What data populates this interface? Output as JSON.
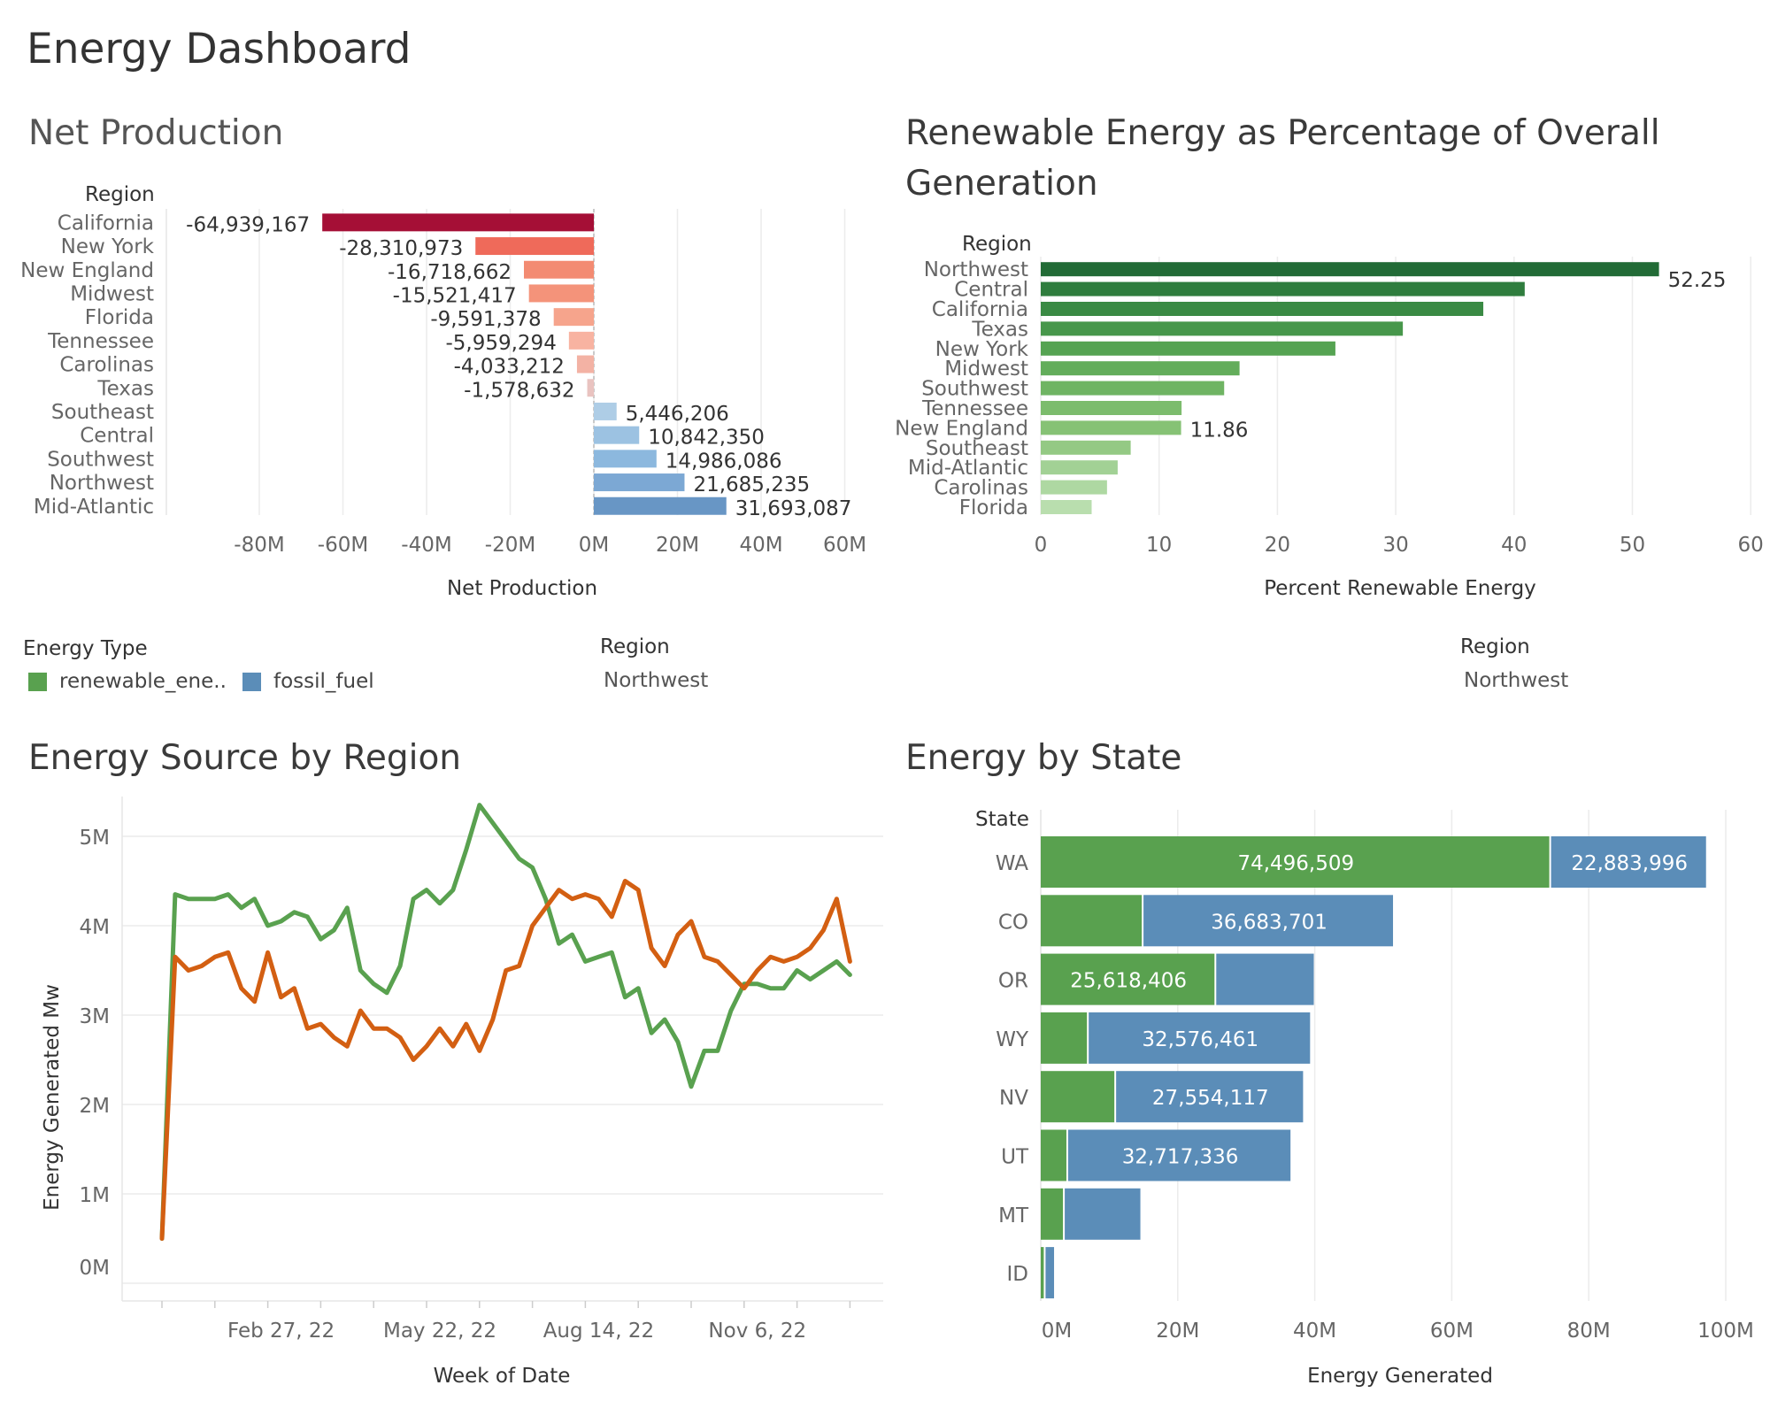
{
  "dashboard": {
    "title": "Energy Dashboard"
  },
  "panels": {
    "net_production": {
      "title": "Net Production"
    },
    "renewable_pct": {
      "title": "Renewable Energy as Percentage of Overall Generation"
    },
    "energy_source": {
      "title": "Energy Source by Region"
    },
    "energy_state": {
      "title": "Energy by State"
    }
  },
  "legend": {
    "title": "Energy Type",
    "items": [
      {
        "label": "renewable_ene..",
        "color": "#59a14f"
      },
      {
        "label": "fossil_fuel",
        "color": "#5b8db8"
      }
    ]
  },
  "filters": [
    {
      "label": "Region",
      "value": "Northwest"
    },
    {
      "label": "Region",
      "value": "Northwest"
    }
  ],
  "chart_data": [
    {
      "type": "bar",
      "orientation": "horizontal",
      "row_header": "Region",
      "categories": [
        "California",
        "New York",
        "New England",
        "Midwest",
        "Florida",
        "Tennessee",
        "Carolinas",
        "Texas",
        "Southeast",
        "Central",
        "Southwest",
        "Northwest",
        "Mid-Atlantic"
      ],
      "values": [
        -64939167,
        -28310973,
        -16718662,
        -15521417,
        -9591378,
        -5959294,
        -4033212,
        -1578632,
        5446206,
        10842350,
        14986086,
        21685235,
        31693087
      ],
      "labels": [
        "-64,939,167",
        "-28,310,973",
        "-16,718,662",
        "-15,521,417",
        "-9,591,378",
        "-5,959,294",
        "-4,033,212",
        "-1,578,632",
        "5,446,206",
        "10,842,350",
        "14,986,086",
        "21,685,235",
        "31,693,087"
      ],
      "xlabel": "Net Production",
      "xlim": [
        -100000000,
        68000000
      ],
      "ticks": [
        -80000000,
        -60000000,
        -40000000,
        -20000000,
        0,
        20000000,
        40000000,
        60000000
      ],
      "tick_labels": [
        "-80M",
        "-60M",
        "-40M",
        "-20M",
        "0M",
        "20M",
        "40M",
        "60M"
      ],
      "colors": [
        "#a50f36",
        "#ef6a5a",
        "#f38b72",
        "#f4937a",
        "#f6a48c",
        "#f8b3a1",
        "#f3b2a4",
        "#e9c3c0",
        "#aecde6",
        "#9cc2e2",
        "#8cb8de",
        "#7ca8d4",
        "#6896c5"
      ]
    },
    {
      "type": "bar",
      "orientation": "horizontal",
      "row_header": "Region",
      "categories": [
        "Northwest",
        "Central",
        "California",
        "Texas",
        "New York",
        "Midwest",
        "Southwest",
        "Tennessee",
        "New England",
        "Southeast",
        "Mid-Atlantic",
        "Carolinas",
        "Florida"
      ],
      "values": [
        52.25,
        40.9,
        37.4,
        30.6,
        24.9,
        16.8,
        15.5,
        11.9,
        11.86,
        7.6,
        6.5,
        5.6,
        4.3
      ],
      "data_labels": {
        "Northwest": "52.25",
        "New England": "11.86"
      },
      "xlabel": "Percent Renewable Energy",
      "xlim": [
        0,
        60
      ],
      "ticks": [
        0,
        10,
        20,
        30,
        40,
        50,
        60
      ],
      "tick_labels": [
        "0",
        "10",
        "20",
        "30",
        "40",
        "50",
        "60"
      ],
      "colors": [
        "#226b36",
        "#2f7d3e",
        "#3a8a44",
        "#47974b",
        "#55a352",
        "#63ad5b",
        "#6fb463",
        "#7cbc6d",
        "#86c275",
        "#94c984",
        "#a2d195",
        "#aed8a2",
        "#b9deae"
      ]
    },
    {
      "type": "line",
      "xlabel": "Week of Date",
      "ylabel": "Energy Generated Mw",
      "x_tick_labels": [
        "Feb 27, 22",
        "May 22, 22",
        "Aug 14, 22",
        "Nov 6, 22"
      ],
      "x_tick_weeks": [
        8,
        20,
        32,
        44
      ],
      "y_ticks": [
        0,
        1000000,
        2000000,
        3000000,
        4000000,
        5000000
      ],
      "y_tick_labels": [
        "0M",
        "1M",
        "2M",
        "3M",
        "4M",
        "5M"
      ],
      "ylim": [
        0,
        5600000
      ],
      "series": [
        {
          "color": "#59a14f",
          "values": [
            500000,
            4350000,
            4300000,
            4300000,
            4300000,
            4350000,
            4200000,
            4300000,
            4000000,
            4050000,
            4150000,
            4100000,
            3850000,
            3950000,
            4200000,
            3500000,
            3350000,
            3250000,
            3550000,
            4300000,
            4400000,
            4250000,
            4400000,
            4850000,
            5350000,
            5150000,
            4950000,
            4750000,
            4650000,
            4300000,
            3800000,
            3900000,
            3600000,
            3650000,
            3700000,
            3200000,
            3300000,
            2800000,
            2950000,
            2700000,
            2200000,
            2600000,
            2600000,
            3050000,
            3350000,
            3350000,
            3300000,
            3300000,
            3500000,
            3400000,
            3500000,
            3600000,
            3450000
          ]
        },
        {
          "color": "#d35f12",
          "values": [
            500000,
            3650000,
            3500000,
            3550000,
            3650000,
            3700000,
            3300000,
            3150000,
            3700000,
            3200000,
            3300000,
            2850000,
            2900000,
            2750000,
            2650000,
            3050000,
            2850000,
            2850000,
            2750000,
            2500000,
            2650000,
            2850000,
            2650000,
            2900000,
            2600000,
            2950000,
            3500000,
            3550000,
            4000000,
            4200000,
            4400000,
            4300000,
            4350000,
            4300000,
            4100000,
            4500000,
            4400000,
            3750000,
            3550000,
            3900000,
            4050000,
            3650000,
            3600000,
            3450000,
            3300000,
            3500000,
            3650000,
            3600000,
            3650000,
            3750000,
            3950000,
            4300000,
            3600000
          ]
        }
      ]
    },
    {
      "type": "bar",
      "orientation": "horizontal",
      "stacked": true,
      "row_header": "State",
      "categories": [
        "WA",
        "CO",
        "OR",
        "WY",
        "NV",
        "UT",
        "MT",
        "ID"
      ],
      "xlabel": "Energy Generated",
      "xlim": [
        0,
        100000000
      ],
      "ticks": [
        0,
        20000000,
        40000000,
        60000000,
        80000000,
        100000000
      ],
      "tick_labels": [
        "0M",
        "20M",
        "40M",
        "60M",
        "80M",
        "100M"
      ],
      "series": [
        {
          "name": "renewable_ene..",
          "color": "#59a14f",
          "values": [
            74496509,
            15000000,
            25618406,
            7000000,
            11000000,
            4000000,
            3500000,
            700000
          ],
          "labels": [
            "74,496,509",
            "",
            "25,618,406",
            "",
            "",
            "",
            "",
            ""
          ]
        },
        {
          "name": "fossil_fuel",
          "color": "#5b8db8",
          "values": [
            22883996,
            36683701,
            14500000,
            32576461,
            27554117,
            32717336,
            11300000,
            1500000
          ],
          "labels": [
            "22,883,996",
            "36,683,701",
            "",
            "32,576,461",
            "27,554,117",
            "32,717,336",
            "",
            ""
          ]
        }
      ]
    }
  ]
}
